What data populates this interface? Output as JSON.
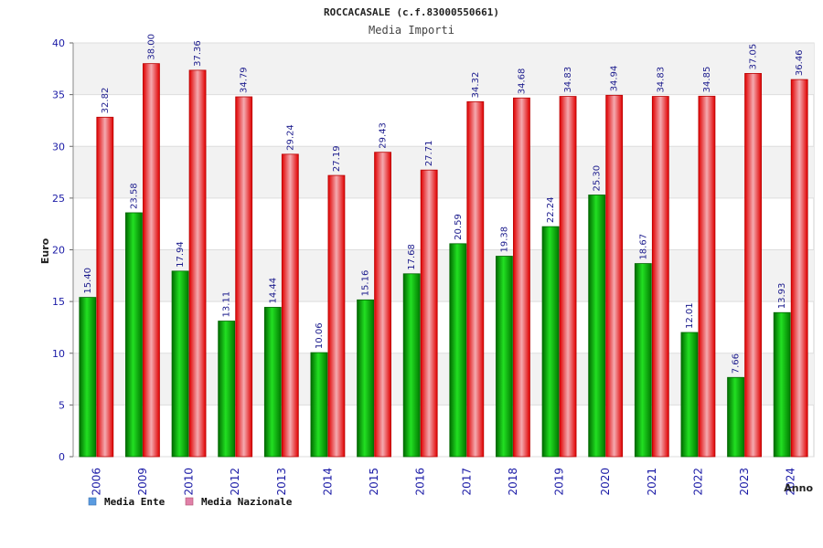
{
  "chart_data": {
    "type": "bar",
    "title": "ROCCACASALE (c.f.83000550661)",
    "subtitle": "Media Importi",
    "ylabel": "Euro",
    "xlabel": "Anno",
    "ylim": [
      0,
      40
    ],
    "yticks": [
      0,
      5,
      10,
      15,
      20,
      25,
      30,
      35,
      40
    ],
    "categories": [
      "2006",
      "2009",
      "2010",
      "2012",
      "2013",
      "2014",
      "2015",
      "2016",
      "2017",
      "2018",
      "2019",
      "2020",
      "2021",
      "2022",
      "2023",
      "2024"
    ],
    "series": [
      {
        "name": "Media Ente",
        "color": "#00bb00",
        "values": [
          15.4,
          23.58,
          17.94,
          13.11,
          14.44,
          10.06,
          15.16,
          17.68,
          20.59,
          19.38,
          22.24,
          25.3,
          18.67,
          12.01,
          7.66,
          13.93
        ],
        "labels": [
          "15.40",
          "23.58",
          "17.94",
          "13.11",
          "14.44",
          "10.06",
          "15.16",
          "17.68",
          "20.59",
          "19.38",
          "22.24",
          "25.30",
          "18.67",
          "12.01",
          "7.66",
          "13.93"
        ]
      },
      {
        "name": "Media Nazionale",
        "color": "#ee1111",
        "values": [
          32.82,
          38.0,
          37.36,
          34.79,
          29.24,
          27.19,
          29.43,
          27.71,
          34.32,
          34.68,
          34.83,
          34.94,
          34.83,
          34.85,
          37.05,
          36.46
        ],
        "labels": [
          "32.82",
          "38.00",
          "37.36",
          "34.79",
          "29.24",
          "27.19",
          "29.43",
          "27.71",
          "34.32",
          "34.68",
          "34.83",
          "34.94",
          "34.83",
          "34.85",
          "37.05",
          "36.46"
        ]
      }
    ],
    "legend": [
      {
        "label": "Media Ente",
        "swatch": "#5a9be0"
      },
      {
        "label": "Media Nazionale",
        "swatch": "#e080a8"
      }
    ],
    "grid": true,
    "legend_position": "bottom-left"
  }
}
